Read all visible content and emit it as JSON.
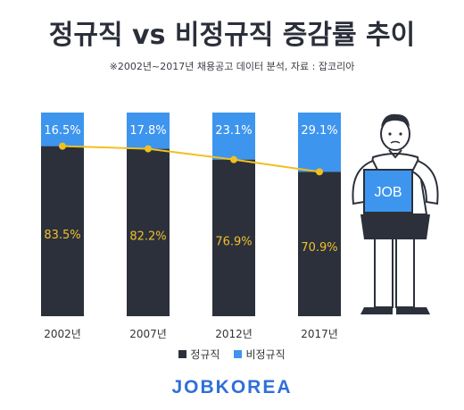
{
  "header": {
    "title": "정규직 vs 비정규직 증감률 추이",
    "subtitle": "※2002년~2017년 채용공고 데이터 분석, 자료 : 잡코리아"
  },
  "brand": {
    "name": "JOBKOREA",
    "color": "#2f6fd9"
  },
  "figure": {
    "sign_text": "JOB",
    "sign_color": "#3d95ee"
  },
  "colors": {
    "regular": "#2b303b",
    "nonregular": "#3d95ee",
    "line": "#f0c020",
    "regular_label": "#f2c02a",
    "nonregular_label": "#ffffff"
  },
  "chart_data": {
    "type": "bar",
    "stacked": true,
    "categories": [
      "2002년",
      "2007년",
      "2012년",
      "2017년"
    ],
    "series": [
      {
        "name": "정규직",
        "values": [
          83.5,
          82.2,
          76.9,
          70.9
        ],
        "labels": [
          "83.5%",
          "82.2%",
          "76.9%",
          "70.9%"
        ]
      },
      {
        "name": "비정규직",
        "values": [
          16.5,
          17.8,
          23.1,
          29.1
        ],
        "labels": [
          "16.5%",
          "17.8%",
          "23.1%",
          "29.1%"
        ]
      }
    ],
    "ylim": [
      0,
      100
    ],
    "legend": "bottom-center",
    "grid": false
  }
}
